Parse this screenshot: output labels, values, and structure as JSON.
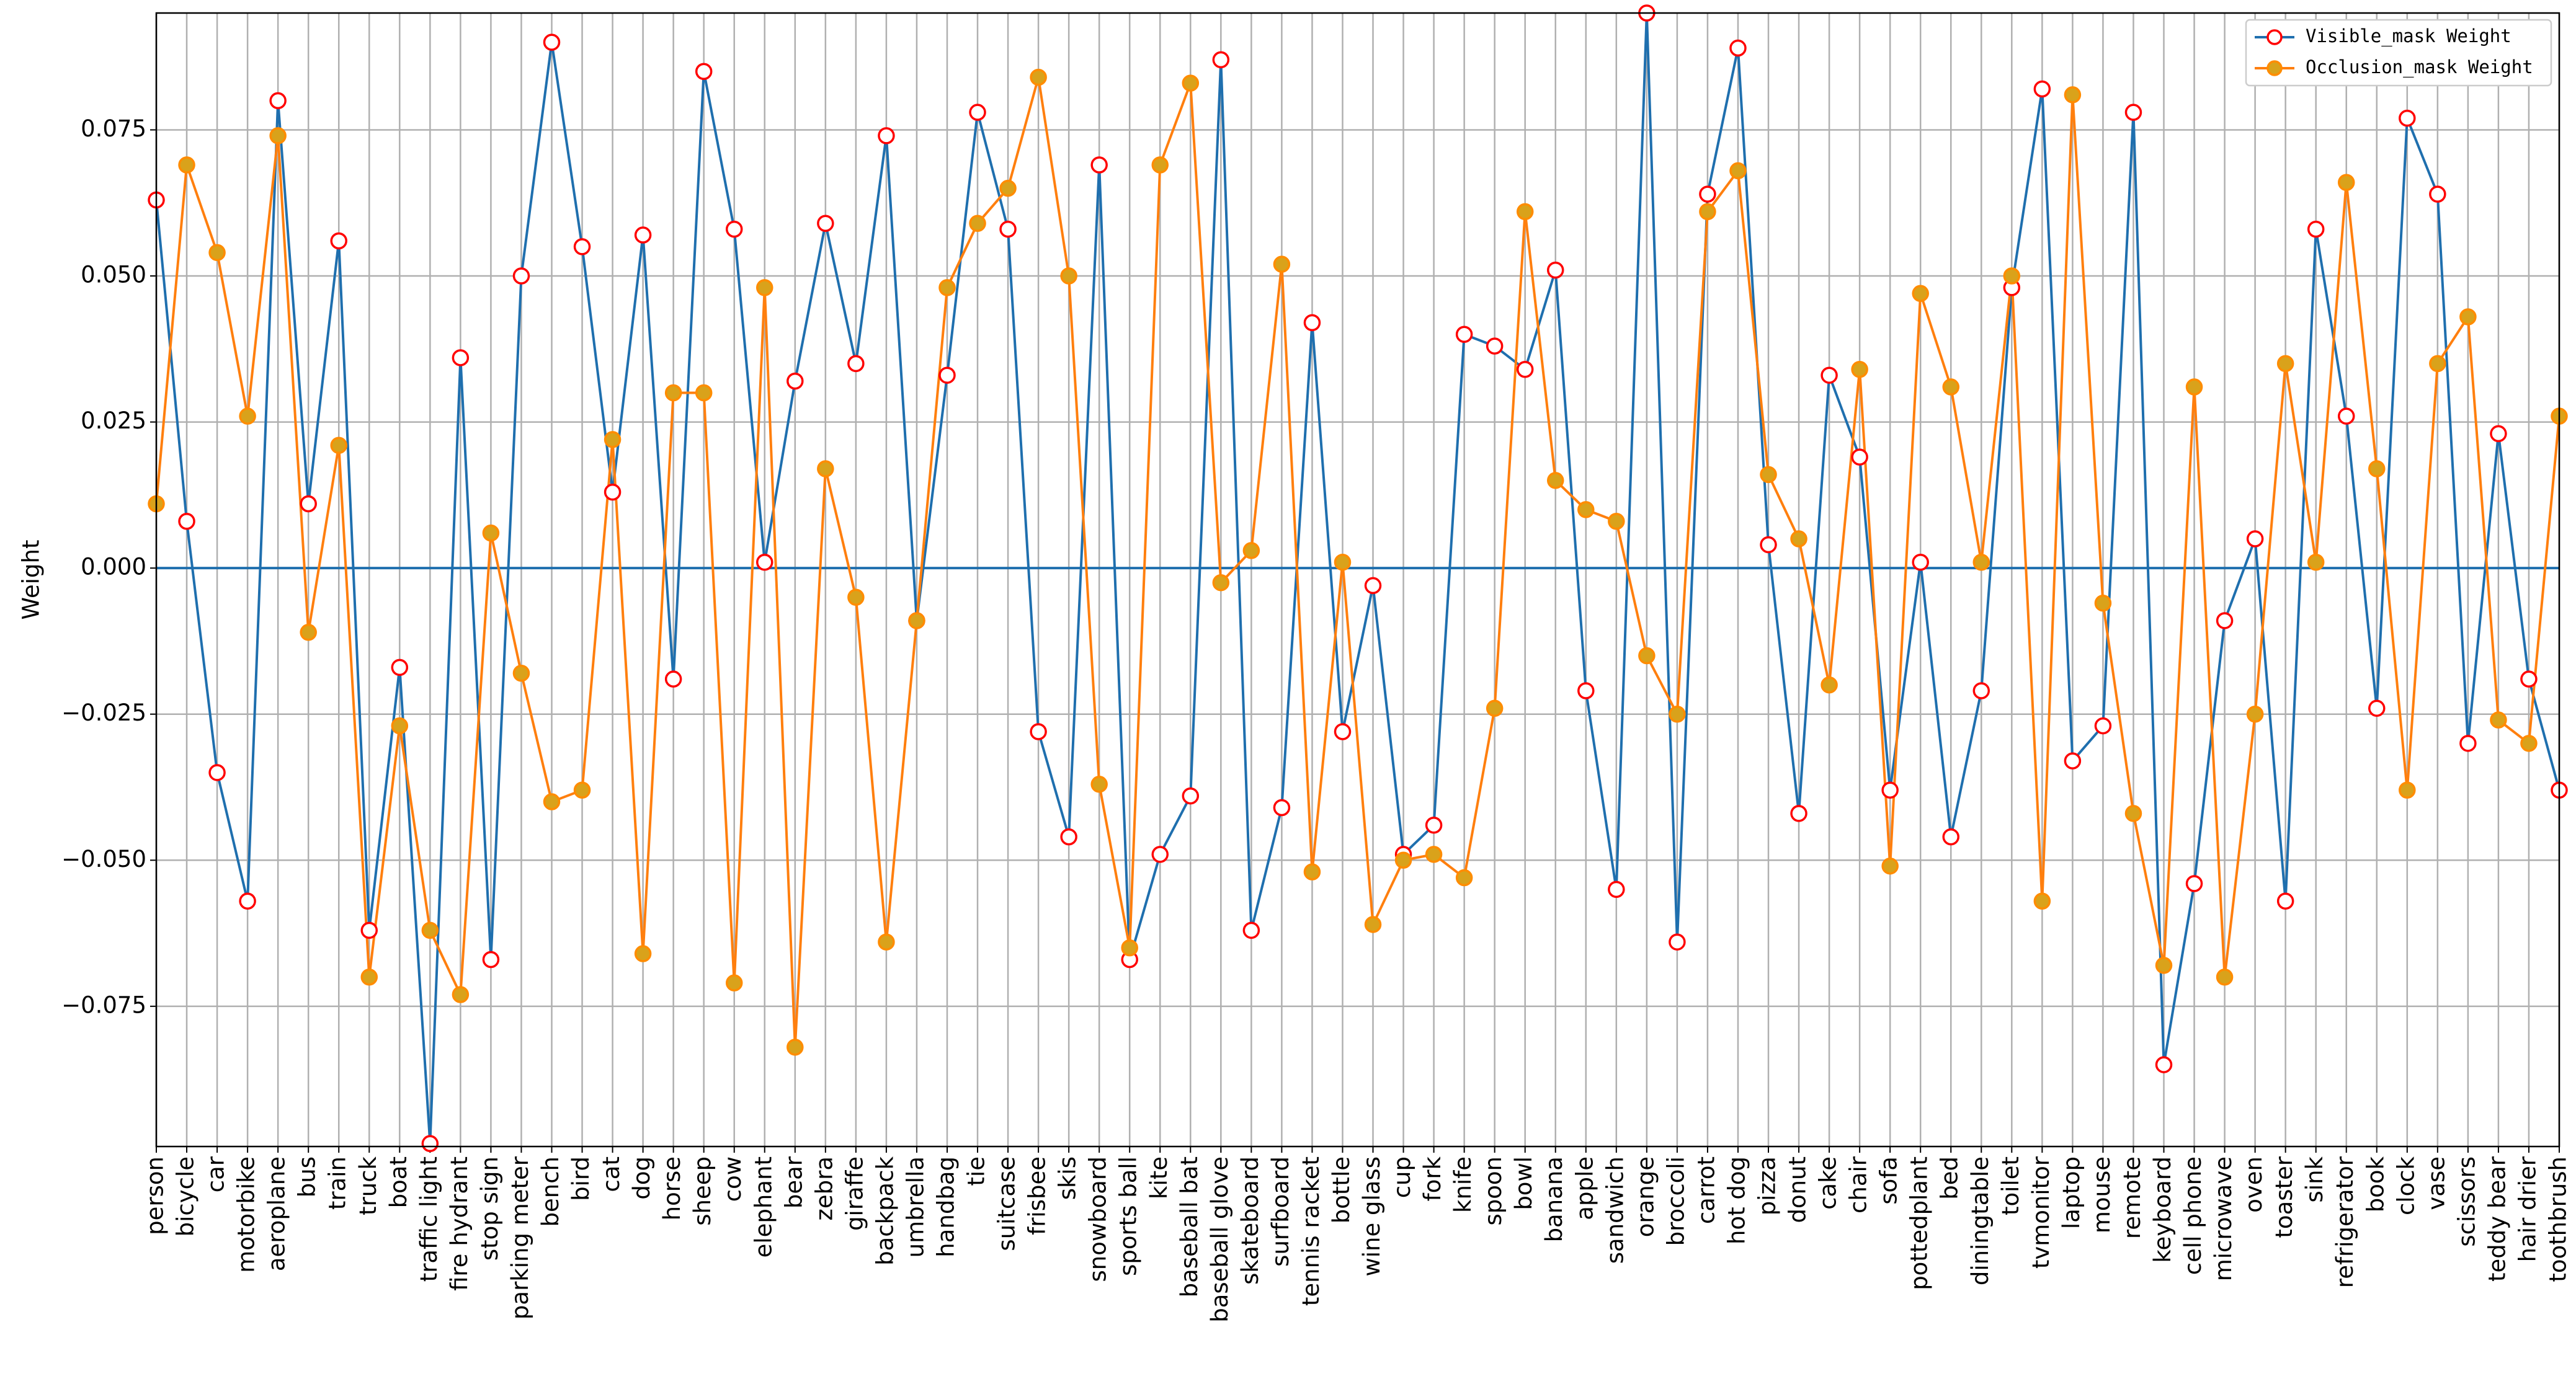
{
  "chart_data": {
    "type": "line",
    "ylabel": "Weight",
    "categories": [
      "person",
      "bicycle",
      "car",
      "motorbike",
      "aeroplane",
      "bus",
      "train",
      "truck",
      "boat",
      "traffic light",
      "fire hydrant",
      "stop sign",
      "parking meter",
      "bench",
      "bird",
      "cat",
      "dog",
      "horse",
      "sheep",
      "cow",
      "elephant",
      "bear",
      "zebra",
      "giraffe",
      "backpack",
      "umbrella",
      "handbag",
      "tie",
      "suitcase",
      "frisbee",
      "skis",
      "snowboard",
      "sports ball",
      "kite",
      "baseball bat",
      "baseball glove",
      "skateboard",
      "surfboard",
      "tennis racket",
      "bottle",
      "wine glass",
      "cup",
      "fork",
      "knife",
      "spoon",
      "bowl",
      "banana",
      "apple",
      "sandwich",
      "orange",
      "broccoli",
      "carrot",
      "hot dog",
      "pizza",
      "donut",
      "cake",
      "chair",
      "sofa",
      "pottedplant",
      "bed",
      "diningtable",
      "toilet",
      "tvmonitor",
      "laptop",
      "mouse",
      "remote",
      "keyboard",
      "cell phone",
      "microwave",
      "oven",
      "toaster",
      "sink",
      "refrigerator",
      "book",
      "clock",
      "vase",
      "scissors",
      "teddy bear",
      "hair drier",
      "toothbrush"
    ],
    "series": [
      {
        "name": "Visible_mask Weight",
        "color": "#1f6fae",
        "marker_face": "#ffffff",
        "marker_edge": "#ff0000",
        "values": [
          0.063,
          0.008,
          -0.035,
          -0.057,
          0.08,
          0.011,
          0.056,
          -0.062,
          -0.017,
          -0.0985,
          0.036,
          -0.067,
          0.05,
          0.09,
          0.055,
          0.013,
          0.057,
          -0.019,
          0.085,
          0.058,
          0.001,
          0.032,
          0.059,
          0.035,
          0.074,
          -0.009,
          0.033,
          0.078,
          0.058,
          -0.028,
          -0.046,
          0.069,
          -0.067,
          -0.049,
          -0.039,
          0.087,
          -0.062,
          -0.041,
          0.042,
          -0.028,
          -0.003,
          -0.049,
          -0.044,
          0.04,
          0.038,
          0.034,
          0.051,
          -0.021,
          -0.055,
          0.095,
          -0.064,
          0.064,
          0.089,
          0.004,
          -0.042,
          0.033,
          0.019,
          -0.038,
          0.001,
          -0.046,
          -0.021,
          0.048,
          0.082,
          -0.033,
          -0.027,
          0.078,
          -0.085,
          -0.054,
          -0.009,
          0.005,
          -0.057,
          0.058,
          0.026,
          -0.024,
          0.077,
          0.064,
          -0.03,
          0.023,
          -0.019,
          -0.038
        ]
      },
      {
        "name": "Occlusion_mask Weight",
        "color": "#ff7f0e",
        "marker_face": "#d9a21b",
        "marker_edge": "#ff8c00",
        "values": [
          0.011,
          0.069,
          0.054,
          0.026,
          0.074,
          -0.011,
          0.021,
          -0.07,
          -0.027,
          -0.062,
          -0.073,
          0.006,
          -0.018,
          -0.04,
          -0.038,
          0.022,
          -0.066,
          0.03,
          0.03,
          -0.071,
          0.048,
          -0.082,
          0.017,
          -0.005,
          -0.064,
          -0.009,
          0.048,
          0.059,
          0.065,
          0.084,
          0.05,
          -0.037,
          -0.065,
          0.069,
          0.083,
          -0.0025,
          0.003,
          0.052,
          -0.052,
          0.001,
          -0.061,
          -0.05,
          -0.049,
          -0.053,
          -0.024,
          0.061,
          0.015,
          0.01,
          0.008,
          -0.015,
          -0.025,
          0.061,
          0.068,
          0.016,
          0.005,
          -0.02,
          0.034,
          -0.051,
          0.047,
          0.031,
          0.001,
          0.05,
          -0.057,
          0.081,
          -0.006,
          -0.042,
          -0.068,
          0.031,
          -0.07,
          -0.025,
          0.035,
          0.001,
          0.066,
          0.017,
          -0.038,
          0.035,
          0.043,
          -0.026,
          -0.03,
          0.026
        ]
      }
    ],
    "ylim": [
      -0.099,
      0.095
    ],
    "yticks": [
      {
        "value": -0.075,
        "label": "−0.075"
      },
      {
        "value": -0.05,
        "label": "−0.050"
      },
      {
        "value": -0.025,
        "label": "−0.025"
      },
      {
        "value": 0,
        "label": "0.000"
      },
      0.025,
      {
        "value": 0.05,
        "label": "0.050"
      },
      0.075
    ],
    "grid": true,
    "zero_line": true,
    "legend": "upper right"
  }
}
